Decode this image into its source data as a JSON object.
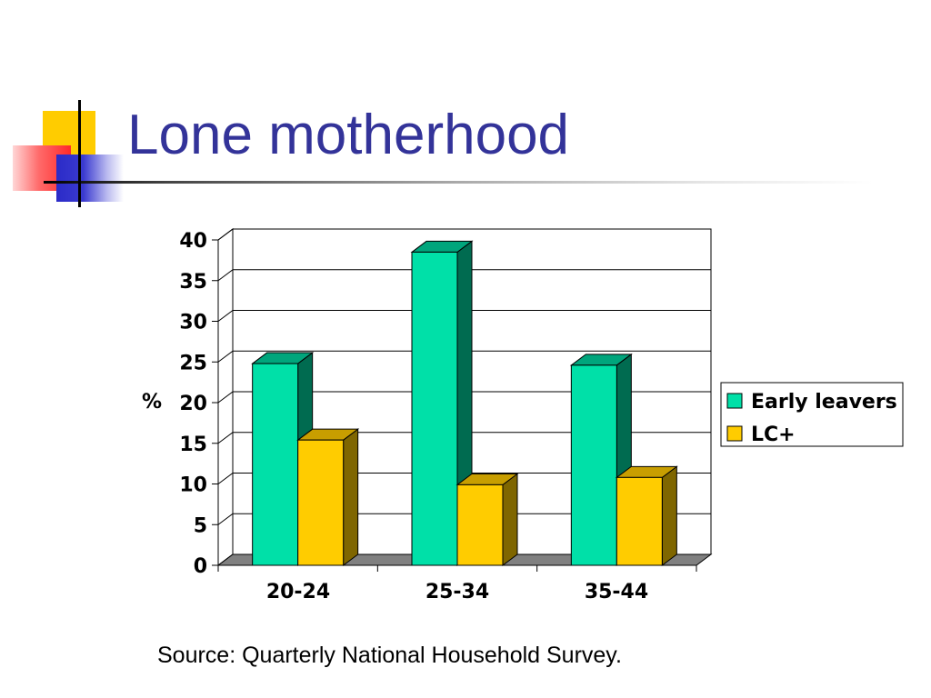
{
  "slide": {
    "title": "Lone motherhood",
    "source": "Source: Quarterly National Household Survey."
  },
  "colors": {
    "title": "#333399"
  },
  "chart_data": {
    "type": "bar",
    "projection": "3d",
    "categories": [
      "20-24",
      "25-34",
      "35-44"
    ],
    "series": [
      {
        "name": "Early leavers",
        "values": [
          24.8,
          38.5,
          24.6
        ],
        "color": "#00E0A8",
        "top_color": "#00A57C",
        "side_color": "#006B50"
      },
      {
        "name": "LC+",
        "values": [
          15.4,
          9.9,
          10.8
        ],
        "color": "#FFCC00",
        "top_color": "#C89E00",
        "side_color": "#7F6600"
      }
    ],
    "xlabel": "",
    "ylabel": "%",
    "ylim": [
      0,
      40
    ],
    "yticks": [
      0,
      5,
      10,
      15,
      20,
      25,
      30,
      35,
      40
    ],
    "grid": true,
    "legend_position": "right"
  }
}
